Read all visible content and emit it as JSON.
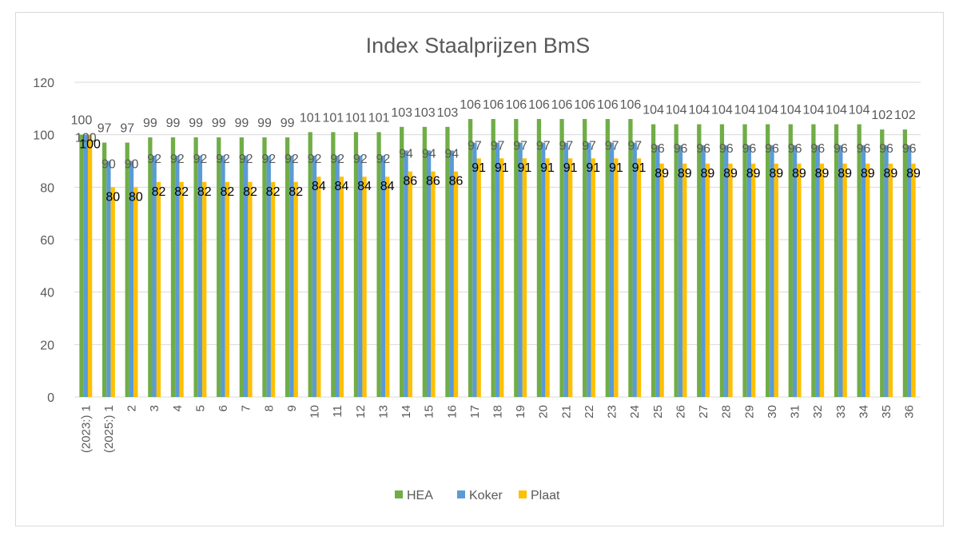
{
  "chart_data": {
    "type": "bar",
    "title": "Index Staalprijzen BmS",
    "xlabel": "",
    "ylabel": "",
    "ylim": [
      0,
      120
    ],
    "yticks": [
      0,
      20,
      40,
      60,
      80,
      100,
      120
    ],
    "grid": true,
    "legend_position": "bottom",
    "categories": [
      "(2023:) 1",
      "(2025:) 1",
      "2",
      "3",
      "4",
      "5",
      "6",
      "7",
      "8",
      "9",
      "10",
      "11",
      "12",
      "13",
      "14",
      "15",
      "16",
      "17",
      "18",
      "19",
      "20",
      "21",
      "22",
      "23",
      "24",
      "25",
      "26",
      "27",
      "28",
      "29",
      "30",
      "31",
      "32",
      "33",
      "34",
      "35",
      "36"
    ],
    "series": [
      {
        "name": "HEA",
        "color": "#70ad47",
        "values": [
          100,
          97,
          97,
          99,
          99,
          99,
          99,
          99,
          99,
          99,
          101,
          101,
          101,
          101,
          103,
          103,
          103,
          106,
          106,
          106,
          106,
          106,
          106,
          106,
          106,
          104,
          104,
          104,
          104,
          104,
          104,
          104,
          104,
          104,
          104,
          102,
          102
        ]
      },
      {
        "name": "Koker",
        "color": "#5b9bd5",
        "values": [
          100,
          90,
          90,
          92,
          92,
          92,
          92,
          92,
          92,
          92,
          92,
          92,
          92,
          92,
          94,
          94,
          94,
          97,
          97,
          97,
          97,
          97,
          97,
          97,
          97,
          96,
          96,
          96,
          96,
          96,
          96,
          96,
          96,
          96,
          96,
          96,
          96
        ]
      },
      {
        "name": "Plaat",
        "color": "#ffc000",
        "values": [
          100,
          80,
          80,
          82,
          82,
          82,
          82,
          82,
          82,
          82,
          84,
          84,
          84,
          84,
          86,
          86,
          86,
          91,
          91,
          91,
          91,
          91,
          91,
          91,
          91,
          89,
          89,
          89,
          89,
          89,
          89,
          89,
          89,
          89,
          89,
          89,
          89
        ]
      }
    ]
  }
}
